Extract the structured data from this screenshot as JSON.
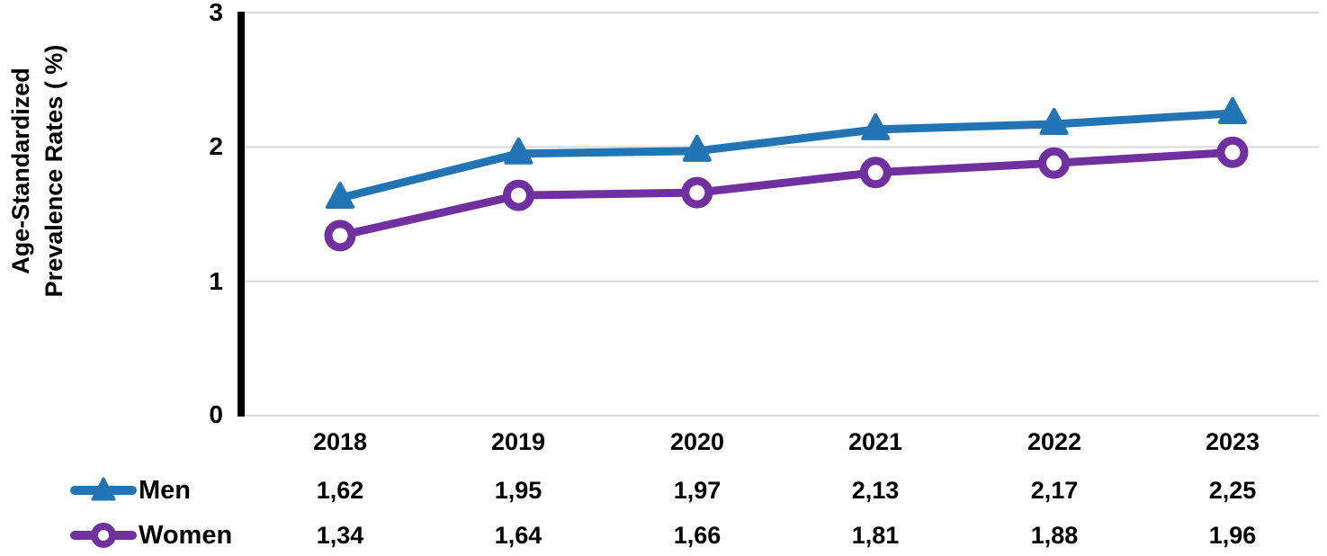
{
  "chart_data": {
    "type": "line",
    "title": "",
    "ylabel": "Age-Standardized\nPrevalence Rates ( %)",
    "xlabel": "",
    "categories": [
      "2018",
      "2019",
      "2020",
      "2021",
      "2022",
      "2023"
    ],
    "series": [
      {
        "name": "Men",
        "values": [
          1.62,
          1.95,
          1.97,
          2.13,
          2.17,
          2.25
        ],
        "color": "#2274B5",
        "marker": "triangle"
      },
      {
        "name": "Women",
        "values": [
          1.34,
          1.64,
          1.66,
          1.81,
          1.88,
          1.96
        ],
        "color": "#7030A0",
        "marker": "open-circle"
      }
    ],
    "ylim": [
      0,
      3
    ],
    "yticks_top_to_bottom": [
      "3",
      "2",
      "1",
      "0"
    ],
    "grid": true,
    "gridline_color": "#D9D9D9",
    "axis_color": "#000000",
    "legend_position": "bottom-left",
    "value_table": {
      "decimal_separator": ",",
      "rows": [
        {
          "series": "Men",
          "display_values": [
            "1,62",
            "1,95",
            "1,97",
            "2,13",
            "2,17",
            "2,25"
          ]
        },
        {
          "series": "Women",
          "display_values": [
            "1,34",
            "1,64",
            "1,66",
            "1,81",
            "1,88",
            "1,96"
          ]
        }
      ]
    }
  }
}
